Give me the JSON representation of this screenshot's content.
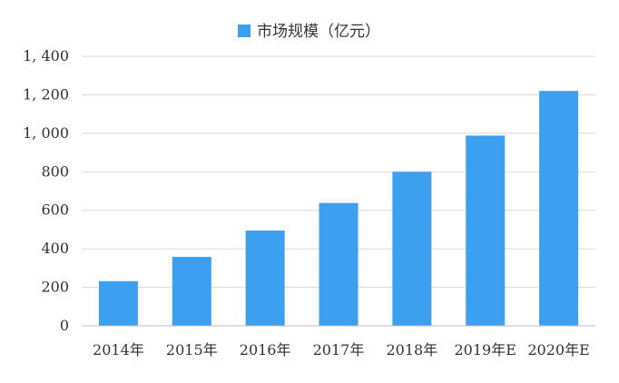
{
  "chart_data": {
    "type": "bar",
    "categories": [
      "2014年",
      "2015年",
      "2016年",
      "2017年",
      "2018年",
      "2019年E",
      "2020年E"
    ],
    "series": [
      {
        "name": "市场规模（亿元）",
        "values": [
          232,
          358,
          495,
          638,
          800,
          988,
          1220
        ],
        "color": "#3d9ff0"
      }
    ],
    "ylim": [
      0,
      1400
    ],
    "yticks": [
      0,
      200,
      400,
      600,
      800,
      1000,
      1200,
      1400
    ],
    "ytick_labels": [
      "0",
      "200",
      "400",
      "600",
      "800",
      "1, 000",
      "1, 200",
      "1, 400"
    ],
    "grid": true,
    "legend_position": "top"
  },
  "colors": {
    "bar": "#3d9ff0",
    "grid": "#d9d9d9",
    "axis": "#bfbfbf",
    "text": "#333333"
  }
}
